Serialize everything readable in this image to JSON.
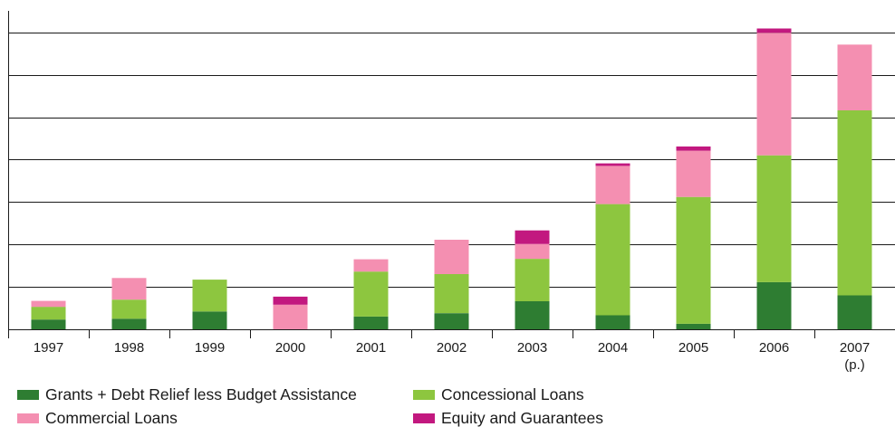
{
  "chart_data": {
    "type": "bar",
    "stacked": true,
    "title": "",
    "xlabel": "",
    "ylabel": "",
    "categories": [
      "1997",
      "1998",
      "1999",
      "2000",
      "2001",
      "2002",
      "2003",
      "2004",
      "2005",
      "2006",
      "2007"
    ],
    "category_sublabels": [
      "",
      "",
      "",
      "",
      "",
      "",
      "",
      "",
      "",
      "",
      "(p.)"
    ],
    "ylim": [
      0,
      7
    ],
    "ytick_step": 1,
    "y_tick_labels_shown": false,
    "grid": true,
    "legend_position": "bottom",
    "series": [
      {
        "name": "Grants + Debt Relief less Budget Assistance",
        "color": "#2e7d32",
        "values": [
          0.23,
          0.25,
          0.42,
          0.0,
          0.3,
          0.38,
          0.66,
          0.33,
          0.13,
          1.11,
          0.8
        ]
      },
      {
        "name": "Concessional Loans",
        "color": "#8dc63f",
        "values": [
          0.3,
          0.45,
          0.75,
          0.0,
          1.06,
          0.92,
          1.0,
          2.62,
          2.99,
          2.99,
          4.36
        ]
      },
      {
        "name": "Commercial Loans",
        "color": "#f48fb1",
        "values": [
          0.14,
          0.51,
          0.0,
          0.58,
          0.29,
          0.81,
          0.35,
          0.9,
          1.09,
          2.89,
          1.55
        ]
      },
      {
        "name": "Equity and Guarantees",
        "color": "#c2187f",
        "values": [
          0.0,
          0.0,
          0.0,
          0.19,
          0.0,
          0.0,
          0.32,
          0.06,
          0.1,
          0.1,
          0.0
        ]
      }
    ]
  }
}
